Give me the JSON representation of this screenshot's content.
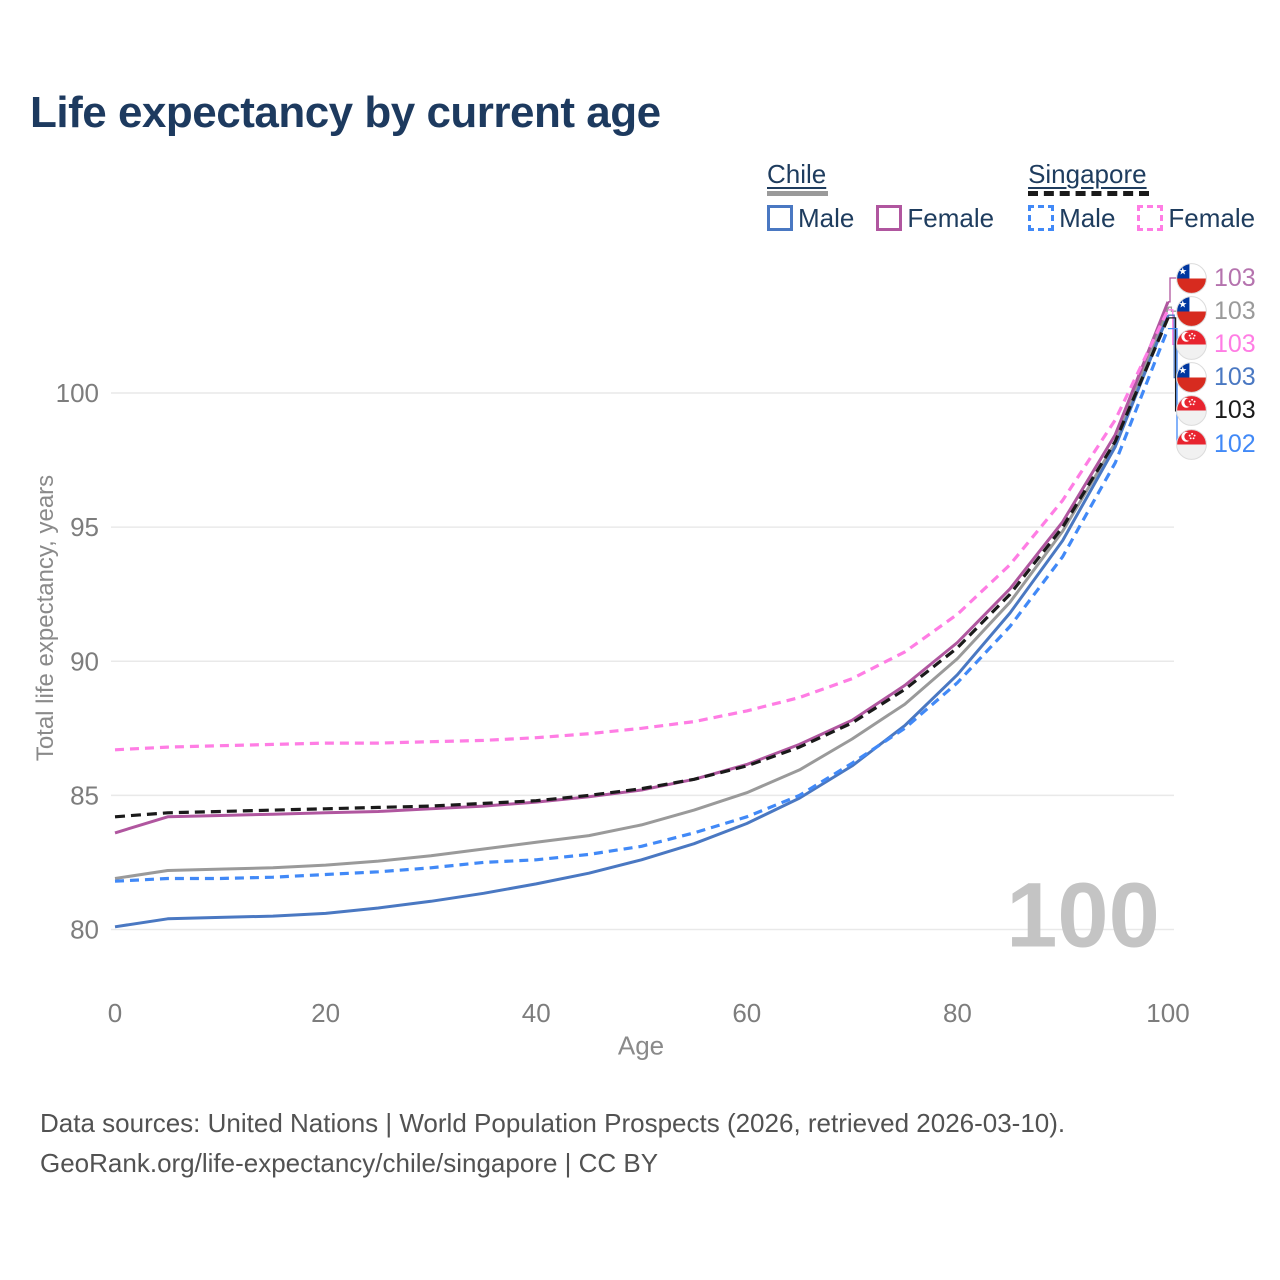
{
  "title": "Life expectancy by current age",
  "legend": {
    "groups": [
      {
        "name": "Chile",
        "line_style": "solid",
        "line_color": "#9a9a9a",
        "items": [
          {
            "label": "Male",
            "color": "#4a78c2",
            "dashed": false
          },
          {
            "label": "Female",
            "color": "#b0569f",
            "dashed": false
          }
        ]
      },
      {
        "name": "Singapore",
        "line_style": "dashed",
        "line_color": "#1a1a1a",
        "items": [
          {
            "label": "Male",
            "color": "#4189f7",
            "dashed": true
          },
          {
            "label": "Female",
            "color": "#ff7de4",
            "dashed": true
          }
        ]
      }
    ]
  },
  "chart_data": {
    "type": "line",
    "title": "Life expectancy by current age",
    "xlabel": "Age",
    "ylabel": "Total life expectancy, years",
    "xlim": [
      0,
      100
    ],
    "ylim": [
      80,
      104
    ],
    "x_ticks": [
      0,
      20,
      40,
      60,
      80,
      100
    ],
    "y_ticks": [
      80,
      85,
      90,
      95,
      100
    ],
    "grid": "horizontal",
    "legend_position": "top-right",
    "x": [
      0,
      5,
      10,
      15,
      20,
      25,
      30,
      35,
      40,
      45,
      50,
      55,
      60,
      65,
      70,
      75,
      80,
      85,
      90,
      95,
      100
    ],
    "series": [
      {
        "name": "Chile",
        "id": "chile-total",
        "country": "Chile",
        "sex": "Both",
        "color": "#9a9a9a",
        "dashed": false,
        "flag": "chile",
        "end_label": "103",
        "end_label_color": "#9a9a9a",
        "values": [
          81.9,
          82.2,
          82.25,
          82.3,
          82.4,
          82.55,
          82.75,
          83.0,
          83.25,
          83.5,
          83.9,
          84.45,
          85.1,
          85.95,
          87.1,
          88.4,
          90.1,
          92.2,
          94.85,
          98.15,
          103.2
        ]
      },
      {
        "name": "Chile Male",
        "id": "chile-male",
        "country": "Chile",
        "sex": "Male",
        "color": "#4a78c2",
        "dashed": false,
        "flag": "chile",
        "end_label": "103",
        "end_label_color": "#4a78c2",
        "values": [
          80.1,
          80.4,
          80.45,
          80.5,
          80.6,
          80.8,
          81.05,
          81.35,
          81.7,
          82.1,
          82.6,
          83.2,
          83.95,
          84.9,
          86.1,
          87.6,
          89.5,
          91.8,
          94.5,
          98.0,
          102.9
        ]
      },
      {
        "name": "Chile Female",
        "id": "chile-female",
        "country": "Chile",
        "sex": "Female",
        "color": "#b0569f",
        "dashed": false,
        "flag": "chile",
        "end_label": "103",
        "end_label_color": "#b573ae",
        "values": [
          83.6,
          84.2,
          84.25,
          84.3,
          84.35,
          84.4,
          84.5,
          84.6,
          84.75,
          84.95,
          85.2,
          85.6,
          86.15,
          86.9,
          87.8,
          89.1,
          90.7,
          92.7,
          95.2,
          98.45,
          103.4
        ]
      },
      {
        "name": "Singapore",
        "id": "singapore-total",
        "country": "Singapore",
        "sex": "Both",
        "color": "#1a1a1a",
        "dashed": true,
        "flag": "singapore",
        "end_label": "103",
        "end_label_color": "#1a1a1a",
        "values": [
          84.2,
          84.35,
          84.4,
          84.45,
          84.5,
          84.55,
          84.6,
          84.7,
          84.8,
          85.0,
          85.25,
          85.6,
          86.1,
          86.8,
          87.7,
          88.95,
          90.5,
          92.5,
          95.0,
          98.2,
          102.8
        ]
      },
      {
        "name": "Singapore Male",
        "id": "singapore-male",
        "country": "Singapore",
        "sex": "Male",
        "color": "#4189f7",
        "dashed": true,
        "flag": "singapore",
        "end_label": "102",
        "end_label_color": "#4189f7",
        "values": [
          81.8,
          81.9,
          81.9,
          81.95,
          82.05,
          82.15,
          82.3,
          82.5,
          82.6,
          82.8,
          83.1,
          83.6,
          84.2,
          85.0,
          86.2,
          87.5,
          89.2,
          91.3,
          93.9,
          97.4,
          102.4
        ]
      },
      {
        "name": "Singapore Female",
        "id": "singapore-female",
        "country": "Singapore",
        "sex": "Female",
        "color": "#ff7de4",
        "dashed": true,
        "flag": "singapore",
        "end_label": "103",
        "end_label_color": "#ff7de4",
        "values": [
          86.7,
          86.8,
          86.85,
          86.9,
          86.95,
          86.95,
          87.0,
          87.05,
          87.15,
          87.3,
          87.5,
          87.75,
          88.15,
          88.65,
          89.35,
          90.35,
          91.75,
          93.6,
          96.0,
          99.0,
          103.1
        ]
      }
    ]
  },
  "watermark": "100",
  "footer": {
    "line1": "Data sources: United Nations | World Population Prospects (2026, retrieved 2026-03-10).",
    "line2": "GeoRank.org/life-expectancy/chile/singapore | CC BY"
  },
  "colors": {
    "title": "#1d3a5f",
    "legend_text": "#1e3c5e",
    "tick_label": "#7d7d7d",
    "axis_title": "#8a8a8a",
    "gridline": "#e9e9e9",
    "watermark": "#c4c4c4",
    "footer_text": "#525252"
  }
}
